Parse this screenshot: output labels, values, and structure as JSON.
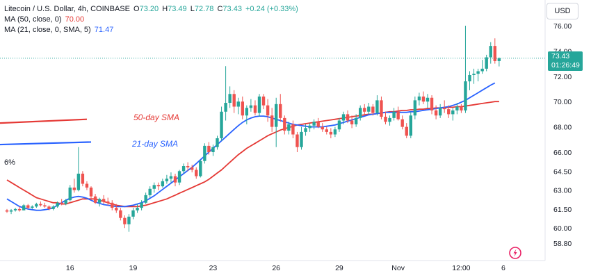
{
  "header": {
    "symbol_line": "Litecoin / U.S. Dollar, 4h, COINBASE",
    "ohlc": [
      {
        "label": "O",
        "value": "73.20"
      },
      {
        "label": "H",
        "value": "73.49"
      },
      {
        "label": "L",
        "value": "72.78"
      },
      {
        "label": "C",
        "value": "73.43"
      }
    ],
    "change": "+0.24 (+0.33%)",
    "indicators": [
      {
        "label": "MA (50, close, 0)",
        "value": "70.00",
        "color": "#e53935"
      },
      {
        "label": "MA (21, close, 0, SMA, 5)",
        "value": "71.47",
        "color": "#2962ff"
      }
    ]
  },
  "currency_button": "USD",
  "price_badge": {
    "price": "73.43",
    "countdown": "01:26:49",
    "color": "#26a69a"
  },
  "cut_label": "6%",
  "colors": {
    "up": "#26a69a",
    "down": "#ef5350",
    "ma50": "#e53935",
    "ma21": "#2962ff",
    "axis_text": "#131722",
    "grid": "#ffffff"
  },
  "chart_data": {
    "type": "candlestick",
    "title": "Litecoin / U.S. Dollar, 4h, COINBASE",
    "y_ticks": [
      76.0,
      74.0,
      72.0,
      70.0,
      68.0,
      66.0,
      64.5,
      63.0,
      61.5,
      60.0,
      58.8
    ],
    "y_tick_labels": [
      "76.00",
      "74.00",
      "72.00",
      "70.00",
      "68.00",
      "66.00",
      "64.50",
      "63.00",
      "61.50",
      "60.00",
      "58.80"
    ],
    "x_ticks": [
      {
        "label": "16",
        "bar": 15
      },
      {
        "label": "19",
        "bar": 30
      },
      {
        "label": "23",
        "bar": 49
      },
      {
        "label": "26",
        "bar": 64
      },
      {
        "label": "29",
        "bar": 79
      },
      {
        "label": "Nov",
        "bar": 93
      },
      {
        "label": "12:00",
        "bar": 108
      },
      {
        "label": "6",
        "bar": 118
      }
    ],
    "annotations": [
      {
        "text": "50-day SMA",
        "color": "#e53935",
        "x0_bar": 0,
        "x1_bar": 19,
        "y0": 68.3,
        "y1": 68.6
      },
      {
        "text": "21-day SMA",
        "color": "#2962ff",
        "x0_bar": 0,
        "x1_bar": 20,
        "y0": 66.6,
        "y1": 66.8
      }
    ],
    "ma50": [
      63.8,
      63.6,
      63.4,
      63.2,
      63.0,
      62.8,
      62.6,
      62.4,
      62.3,
      62.2,
      62.1,
      62.0,
      62.0,
      61.9,
      61.9,
      62.0,
      62.1,
      62.2,
      62.3,
      62.3,
      62.3,
      62.3,
      62.2,
      62.1,
      62.0,
      61.9,
      61.8,
      61.75,
      61.7,
      61.7,
      61.7,
      61.7,
      61.75,
      61.8,
      61.9,
      62.0,
      62.1,
      62.2,
      62.3,
      62.45,
      62.6,
      62.75,
      62.9,
      63.05,
      63.2,
      63.35,
      63.5,
      63.65,
      63.85,
      64.1,
      64.35,
      64.6,
      64.9,
      65.2,
      65.5,
      65.8,
      66.05,
      66.3,
      66.5,
      66.7,
      66.9,
      67.1,
      67.3,
      67.45,
      67.6,
      67.75,
      67.85,
      67.95,
      68.05,
      68.15,
      68.2,
      68.25,
      68.3,
      68.35,
      68.4,
      68.45,
      68.5,
      68.55,
      68.6,
      68.65,
      68.7,
      68.75,
      68.8,
      68.85,
      68.9,
      68.95,
      69.0,
      69.0,
      69.05,
      69.1,
      69.15,
      69.2,
      69.2,
      69.25,
      69.3,
      69.3,
      69.35,
      69.35,
      69.4,
      69.4,
      69.45,
      69.45,
      69.5,
      69.5,
      69.5,
      69.55,
      69.55,
      69.6,
      69.6,
      69.65,
      69.7,
      69.75,
      69.8,
      69.85,
      69.9,
      69.95,
      70.0,
      70.0
    ],
    "ma21": [
      62.3,
      62.1,
      61.9,
      61.7,
      61.6,
      61.5,
      61.45,
      61.4,
      61.4,
      61.45,
      61.5,
      61.6,
      61.8,
      62.0,
      62.2,
      62.35,
      62.45,
      62.5,
      62.45,
      62.35,
      62.2,
      62.05,
      61.95,
      61.85,
      61.8,
      61.75,
      61.7,
      61.7,
      61.7,
      61.75,
      61.8,
      61.9,
      62.0,
      62.15,
      62.35,
      62.55,
      62.8,
      63.05,
      63.3,
      63.55,
      63.8,
      64.05,
      64.3,
      64.55,
      64.8,
      65.1,
      65.4,
      65.7,
      66.0,
      66.3,
      66.6,
      66.9,
      67.2,
      67.5,
      67.8,
      68.1,
      68.35,
      68.55,
      68.7,
      68.8,
      68.85,
      68.85,
      68.8,
      68.7,
      68.6,
      68.5,
      68.4,
      68.3,
      68.2,
      68.15,
      68.1,
      68.05,
      68.0,
      68.0,
      68.0,
      68.0,
      68.05,
      68.1,
      68.15,
      68.25,
      68.35,
      68.45,
      68.55,
      68.65,
      68.75,
      68.85,
      68.95,
      69.0,
      69.05,
      69.1,
      69.15,
      69.15,
      69.15,
      69.15,
      69.15,
      69.15,
      69.2,
      69.2,
      69.25,
      69.3,
      69.35,
      69.4,
      69.45,
      69.5,
      69.55,
      69.6,
      69.7,
      69.8,
      69.95,
      70.1,
      70.3,
      70.5,
      70.7,
      70.9,
      71.1,
      71.3,
      71.47
    ],
    "candles": [
      [
        61.4,
        61.5,
        61.2,
        61.3
      ],
      [
        61.3,
        61.5,
        61.1,
        61.4
      ],
      [
        61.4,
        61.6,
        61.3,
        61.5
      ],
      [
        61.5,
        61.7,
        61.3,
        61.4
      ],
      [
        61.4,
        61.9,
        61.4,
        61.8
      ],
      [
        61.8,
        61.9,
        61.5,
        61.6
      ],
      [
        61.6,
        61.8,
        61.5,
        61.7
      ],
      [
        61.7,
        62.0,
        61.6,
        61.9
      ],
      [
        61.9,
        62.1,
        61.7,
        61.8
      ],
      [
        61.8,
        62.0,
        61.6,
        61.7
      ],
      [
        61.7,
        61.8,
        61.4,
        61.5
      ],
      [
        61.5,
        61.8,
        61.4,
        61.7
      ],
      [
        61.7,
        62.1,
        61.6,
        62.0
      ],
      [
        62.0,
        62.3,
        61.8,
        61.9
      ],
      [
        61.9,
        62.3,
        61.8,
        62.2
      ],
      [
        62.2,
        63.4,
        62.1,
        63.2
      ],
      [
        63.2,
        63.9,
        62.8,
        63.0
      ],
      [
        63.0,
        66.4,
        62.9,
        64.3
      ],
      [
        64.3,
        64.5,
        63.3,
        63.5
      ],
      [
        63.5,
        63.7,
        63.0,
        63.2
      ],
      [
        63.2,
        63.3,
        62.2,
        62.5
      ],
      [
        62.5,
        62.7,
        61.9,
        62.0
      ],
      [
        62.0,
        62.4,
        61.7,
        62.3
      ],
      [
        62.3,
        62.6,
        61.9,
        62.1
      ],
      [
        62.1,
        62.4,
        61.8,
        62.0
      ],
      [
        62.0,
        62.2,
        61.4,
        61.6
      ],
      [
        61.6,
        61.9,
        61.2,
        61.4
      ],
      [
        61.4,
        61.6,
        60.6,
        60.8
      ],
      [
        60.8,
        61.0,
        60.0,
        60.3
      ],
      [
        60.3,
        61.1,
        59.7,
        60.9
      ],
      [
        60.9,
        61.6,
        60.7,
        61.4
      ],
      [
        61.4,
        61.9,
        61.2,
        61.6
      ],
      [
        61.6,
        62.2,
        61.4,
        62.0
      ],
      [
        62.0,
        62.8,
        61.9,
        62.6
      ],
      [
        62.6,
        63.3,
        62.4,
        63.1
      ],
      [
        63.1,
        63.6,
        62.8,
        63.4
      ],
      [
        63.4,
        63.6,
        63.0,
        63.3
      ],
      [
        63.3,
        63.9,
        63.2,
        63.7
      ],
      [
        63.7,
        64.2,
        63.5,
        63.9
      ],
      [
        63.9,
        64.4,
        63.6,
        64.1
      ],
      [
        64.1,
        64.3,
        63.3,
        63.6
      ],
      [
        63.6,
        64.6,
        63.4,
        64.5
      ],
      [
        64.5,
        65.1,
        64.3,
        64.9
      ],
      [
        64.9,
        65.2,
        64.5,
        64.8
      ],
      [
        64.8,
        65.0,
        64.4,
        64.6
      ],
      [
        64.6,
        64.8,
        63.9,
        64.1
      ],
      [
        64.1,
        65.4,
        64.0,
        65.3
      ],
      [
        65.3,
        66.7,
        65.1,
        66.5
      ],
      [
        66.5,
        66.8,
        65.8,
        66.0
      ],
      [
        66.0,
        66.6,
        65.7,
        66.4
      ],
      [
        66.4,
        67.3,
        66.2,
        67.1
      ],
      [
        67.1,
        69.6,
        66.9,
        69.2
      ],
      [
        69.2,
        72.8,
        68.5,
        69.9
      ],
      [
        69.9,
        71.2,
        69.5,
        70.6
      ],
      [
        70.6,
        70.9,
        69.1,
        69.6
      ],
      [
        69.6,
        70.3,
        69.0,
        70.0
      ],
      [
        70.0,
        70.4,
        68.6,
        68.9
      ],
      [
        68.9,
        69.7,
        68.2,
        69.5
      ],
      [
        69.5,
        70.2,
        69.2,
        69.7
      ],
      [
        69.7,
        70.1,
        68.9,
        69.1
      ],
      [
        69.1,
        70.6,
        68.8,
        70.4
      ],
      [
        70.4,
        70.6,
        69.4,
        69.7
      ],
      [
        69.7,
        70.2,
        68.4,
        68.9
      ],
      [
        68.9,
        69.5,
        67.6,
        68.0
      ],
      [
        68.0,
        70.3,
        66.4,
        69.8
      ],
      [
        69.8,
        70.6,
        68.4,
        68.7
      ],
      [
        68.7,
        68.9,
        67.4,
        67.7
      ],
      [
        67.7,
        68.4,
        67.4,
        68.2
      ],
      [
        68.2,
        68.5,
        67.1,
        67.4
      ],
      [
        67.4,
        67.6,
        66.0,
        66.4
      ],
      [
        66.4,
        68.0,
        66.2,
        67.6
      ],
      [
        67.6,
        68.2,
        67.3,
        67.9
      ],
      [
        67.9,
        68.3,
        67.6,
        68.1
      ],
      [
        68.1,
        68.6,
        67.8,
        68.4
      ],
      [
        68.4,
        68.7,
        67.9,
        68.0
      ],
      [
        68.0,
        68.3,
        67.6,
        67.8
      ],
      [
        67.8,
        68.0,
        67.4,
        67.6
      ],
      [
        67.6,
        67.9,
        67.1,
        67.4
      ],
      [
        67.4,
        68.0,
        67.2,
        67.8
      ],
      [
        67.8,
        68.7,
        67.6,
        68.5
      ],
      [
        68.5,
        69.2,
        68.2,
        69.0
      ],
      [
        69.0,
        69.3,
        68.3,
        68.5
      ],
      [
        68.5,
        68.9,
        67.9,
        68.2
      ],
      [
        68.2,
        69.0,
        68.0,
        68.7
      ],
      [
        68.7,
        69.7,
        68.5,
        69.5
      ],
      [
        69.5,
        69.8,
        69.0,
        69.2
      ],
      [
        69.2,
        69.9,
        69.0,
        69.6
      ],
      [
        69.6,
        69.8,
        68.9,
        69.1
      ],
      [
        69.1,
        70.5,
        68.9,
        70.1
      ],
      [
        70.1,
        70.4,
        68.6,
        68.8
      ],
      [
        68.8,
        69.2,
        68.2,
        68.4
      ],
      [
        68.4,
        68.9,
        68.1,
        68.7
      ],
      [
        68.7,
        69.5,
        68.5,
        69.2
      ],
      [
        69.2,
        69.6,
        68.5,
        68.6
      ],
      [
        68.6,
        68.9,
        67.8,
        68.0
      ],
      [
        68.0,
        68.3,
        67.1,
        67.3
      ],
      [
        67.3,
        69.2,
        67.1,
        68.9
      ],
      [
        68.9,
        70.4,
        68.6,
        70.1
      ],
      [
        70.1,
        70.7,
        69.7,
        70.4
      ],
      [
        70.4,
        70.8,
        69.8,
        70.0
      ],
      [
        70.0,
        70.6,
        69.5,
        70.3
      ],
      [
        70.3,
        70.5,
        69.0,
        69.3
      ],
      [
        69.3,
        69.7,
        68.6,
        68.9
      ],
      [
        68.9,
        69.8,
        68.7,
        69.5
      ],
      [
        69.5,
        70.1,
        69.1,
        69.4
      ],
      [
        69.4,
        69.7,
        68.7,
        69.0
      ],
      [
        69.0,
        69.5,
        68.5,
        69.3
      ],
      [
        69.3,
        69.9,
        69.0,
        69.6
      ],
      [
        69.6,
        69.8,
        69.1,
        69.3
      ],
      [
        69.3,
        76.0,
        69.1,
        71.6
      ],
      [
        71.6,
        72.4,
        70.9,
        72.1
      ],
      [
        72.1,
        72.6,
        71.4,
        72.2
      ],
      [
        72.2,
        72.6,
        71.6,
        72.4
      ],
      [
        72.4,
        73.3,
        72.2,
        72.6
      ],
      [
        72.6,
        73.7,
        72.4,
        73.5
      ],
      [
        73.5,
        74.7,
        73.0,
        74.4
      ],
      [
        74.4,
        75.0,
        73.0,
        73.2
      ],
      [
        73.2,
        73.49,
        72.78,
        73.43
      ]
    ]
  }
}
